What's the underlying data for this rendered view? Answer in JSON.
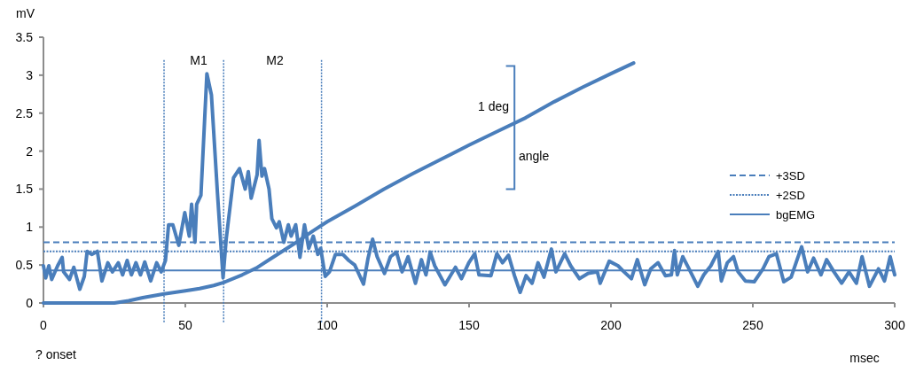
{
  "chart_data": {
    "type": "line",
    "xlabel": "msec",
    "ylabel": "mV",
    "xlim": [
      0,
      300
    ],
    "xticks": [
      0,
      50,
      100,
      150,
      200,
      250,
      300
    ],
    "ylim": [
      0,
      3.5
    ],
    "yticks": [
      0,
      0.5,
      1,
      1.5,
      2,
      2.5,
      3,
      3.5
    ],
    "grid": false,
    "legend": "right",
    "marker": "none",
    "line_style": "solid",
    "series": [
      {
        "color": "#4a7ebb",
        "x": [
          0,
          0.8,
          1.9,
          2.9,
          5,
          6.6,
          7.1,
          9.2,
          10.7,
          12.8,
          14.4,
          15.4,
          17,
          19,
          20.6,
          22.7,
          24.3,
          26.4,
          27.9,
          29.5,
          31,
          32.6,
          34.2,
          35.7,
          37.8,
          39.9,
          41.5,
          43,
          44.1,
          45.6,
          47.7,
          49.8,
          51.4,
          52.2,
          53.4,
          54,
          55.5,
          57.6,
          59.2,
          61.3,
          63.3,
          64.4,
          67,
          69.1,
          71.1,
          72.2,
          73.2,
          75.3,
          76,
          77,
          77.9,
          79.5,
          80.5,
          82.1,
          83.1,
          84.7,
          86.3,
          87.3,
          88.9,
          90.4,
          92,
          93.5,
          95.1,
          96.7,
          97.7,
          99.3,
          100.8,
          102.9,
          105.5,
          107.6,
          109.7,
          112.8,
          114.4,
          116,
          117.6,
          120.2,
          122.3,
          124.4,
          126.4,
          128.5,
          131.1,
          133.2,
          134.8,
          136.3,
          137.9,
          141.5,
          145.2,
          147.3,
          149.9,
          152,
          153.5,
          157.7,
          159.8,
          161.8,
          163.9,
          166,
          168,
          170.1,
          172.2,
          174.3,
          176.4,
          179,
          180.6,
          183.7,
          185.8,
          188.9,
          192,
          195.2,
          196.2,
          199.4,
          202.5,
          204.6,
          207.2,
          209.3,
          211.9,
          214,
          216.6,
          219.2,
          221.3,
          222.4,
          223.4,
          225.3,
          227.5,
          230.6,
          232.7,
          235.2,
          237.8,
          238.9,
          241,
          243.2,
          244.8,
          247.4,
          250.5,
          253.6,
          255.7,
          258.3,
          260.9,
          263.5,
          265.6,
          267.2,
          269.3,
          271.4,
          274,
          276,
          278.6,
          281.3,
          283.9,
          286.5,
          288.5,
          291.1,
          294.3,
          296.4,
          298.4,
          300
        ],
        "values": [
          0.49,
          0.33,
          0.49,
          0.31,
          0.49,
          0.6,
          0.41,
          0.31,
          0.47,
          0.18,
          0.35,
          0.68,
          0.64,
          0.68,
          0.29,
          0.53,
          0.41,
          0.53,
          0.37,
          0.56,
          0.37,
          0.53,
          0.37,
          0.54,
          0.29,
          0.53,
          0.41,
          0.56,
          1.03,
          1.03,
          0.76,
          1.19,
          0.88,
          1.3,
          0.8,
          1.3,
          1.42,
          3.02,
          2.74,
          1.46,
          0.33,
          0.84,
          1.65,
          1.77,
          1.5,
          1.73,
          1.38,
          1.69,
          2.14,
          1.67,
          1.77,
          1.5,
          1.11,
          0.99,
          1.07,
          0.8,
          1.03,
          0.88,
          1.03,
          0.6,
          1.03,
          0.72,
          0.88,
          0.64,
          0.72,
          0.35,
          0.41,
          0.64,
          0.64,
          0.56,
          0.5,
          0.25,
          0.59,
          0.84,
          0.61,
          0.39,
          0.61,
          0.67,
          0.41,
          0.61,
          0.26,
          0.57,
          0.37,
          0.67,
          0.49,
          0.24,
          0.47,
          0.32,
          0.53,
          0.65,
          0.37,
          0.36,
          0.65,
          0.53,
          0.63,
          0.36,
          0.14,
          0.36,
          0.26,
          0.53,
          0.34,
          0.71,
          0.41,
          0.65,
          0.49,
          0.32,
          0.39,
          0.41,
          0.26,
          0.55,
          0.49,
          0.41,
          0.32,
          0.57,
          0.24,
          0.45,
          0.53,
          0.36,
          0.37,
          0.69,
          0.37,
          0.61,
          0.45,
          0.22,
          0.37,
          0.49,
          0.68,
          0.29,
          0.53,
          0.61,
          0.41,
          0.29,
          0.28,
          0.45,
          0.61,
          0.65,
          0.28,
          0.34,
          0.57,
          0.74,
          0.41,
          0.59,
          0.37,
          0.57,
          0.41,
          0.26,
          0.41,
          0.26,
          0.61,
          0.22,
          0.45,
          0.29,
          0.61,
          0.37
        ]
      },
      {
        "color": "#4a7ebb",
        "x": [
          0,
          25,
          30,
          35,
          42.5,
          50,
          55,
          60,
          63.5,
          70,
          75,
          80,
          85,
          90,
          95,
          100,
          110,
          120,
          130,
          140,
          150,
          160,
          170,
          180,
          190,
          200,
          208
        ],
        "values": [
          0,
          0,
          0.03,
          0.07,
          0.12,
          0.16,
          0.19,
          0.23,
          0.27,
          0.37,
          0.46,
          0.58,
          0.7,
          0.82,
          0.95,
          1.07,
          1.28,
          1.5,
          1.7,
          1.89,
          2.08,
          2.26,
          2.44,
          2.65,
          2.84,
          3.02,
          3.16
        ]
      }
    ],
    "ref_lines": [
      {
        "axis": "y",
        "value": 0.8,
        "label": "+3SD",
        "line_style": "dashed",
        "color": "#4a7ebb"
      },
      {
        "axis": "y",
        "value": 0.68,
        "label": "+2SD",
        "line_style": "dotted",
        "color": "#4a7ebb"
      },
      {
        "axis": "y",
        "value": 0.43,
        "label": "bgEMG",
        "line_style": "solid",
        "color": "#4a7ebb"
      },
      {
        "axis": "x",
        "value": 42.5,
        "line_style": "dotted",
        "color": "#4a7ebb"
      },
      {
        "axis": "x",
        "value": 63.5,
        "line_style": "dotted",
        "color": "#4a7ebb"
      },
      {
        "axis": "x",
        "value": 98,
        "line_style": "dotted",
        "color": "#4a7ebb"
      }
    ],
    "annotations": [
      "M1",
      "M2",
      "1 deg",
      "angle",
      "? onset"
    ]
  }
}
